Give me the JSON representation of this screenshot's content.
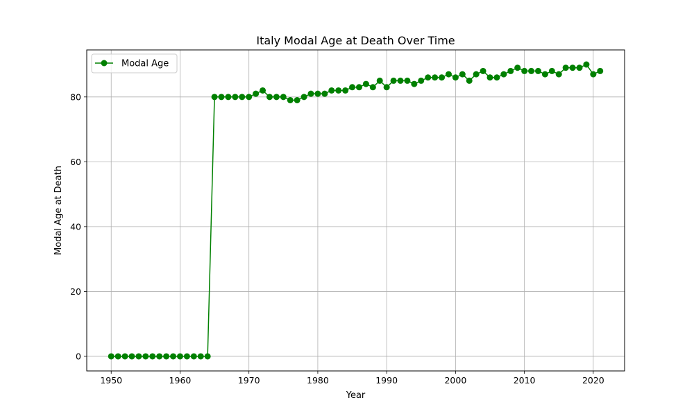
{
  "chart_data": {
    "type": "line",
    "title": "Italy Modal Age at Death Over Time",
    "xlabel": "Year",
    "ylabel": "Modal Age at Death",
    "xlim": [
      1946.45,
      2024.55
    ],
    "ylim": [
      -4.5,
      94.5
    ],
    "x_ticks": [
      1950,
      1960,
      1970,
      1980,
      1990,
      2000,
      2010,
      2020
    ],
    "y_ticks": [
      0,
      20,
      40,
      60,
      80
    ],
    "grid": true,
    "legend": "upper-left",
    "series": [
      {
        "name": "Modal Age",
        "color": "#008000",
        "marker": "circle",
        "x": [
          1950,
          1951,
          1952,
          1953,
          1954,
          1955,
          1956,
          1957,
          1958,
          1959,
          1960,
          1961,
          1962,
          1963,
          1964,
          1965,
          1966,
          1967,
          1968,
          1969,
          1970,
          1971,
          1972,
          1973,
          1974,
          1975,
          1976,
          1977,
          1978,
          1979,
          1980,
          1981,
          1982,
          1983,
          1984,
          1985,
          1986,
          1987,
          1988,
          1989,
          1990,
          1991,
          1992,
          1993,
          1994,
          1995,
          1996,
          1997,
          1998,
          1999,
          2000,
          2001,
          2002,
          2003,
          2004,
          2005,
          2006,
          2007,
          2008,
          2009,
          2010,
          2011,
          2012,
          2013,
          2014,
          2015,
          2016,
          2017,
          2018,
          2019,
          2020,
          2021
        ],
        "y": [
          0,
          0,
          0,
          0,
          0,
          0,
          0,
          0,
          0,
          0,
          0,
          0,
          0,
          0,
          0,
          80,
          80,
          80,
          80,
          80,
          80,
          81,
          82,
          80,
          80,
          80,
          79,
          79,
          80,
          81,
          81,
          81,
          82,
          82,
          82,
          83,
          83,
          84,
          83,
          85,
          83,
          85,
          85,
          85,
          84,
          85,
          86,
          86,
          86,
          87,
          86,
          87,
          85,
          87,
          88,
          86,
          86,
          87,
          88,
          89,
          88,
          88,
          88,
          87,
          88,
          87,
          89,
          89,
          89,
          90,
          87,
          88
        ]
      }
    ]
  }
}
